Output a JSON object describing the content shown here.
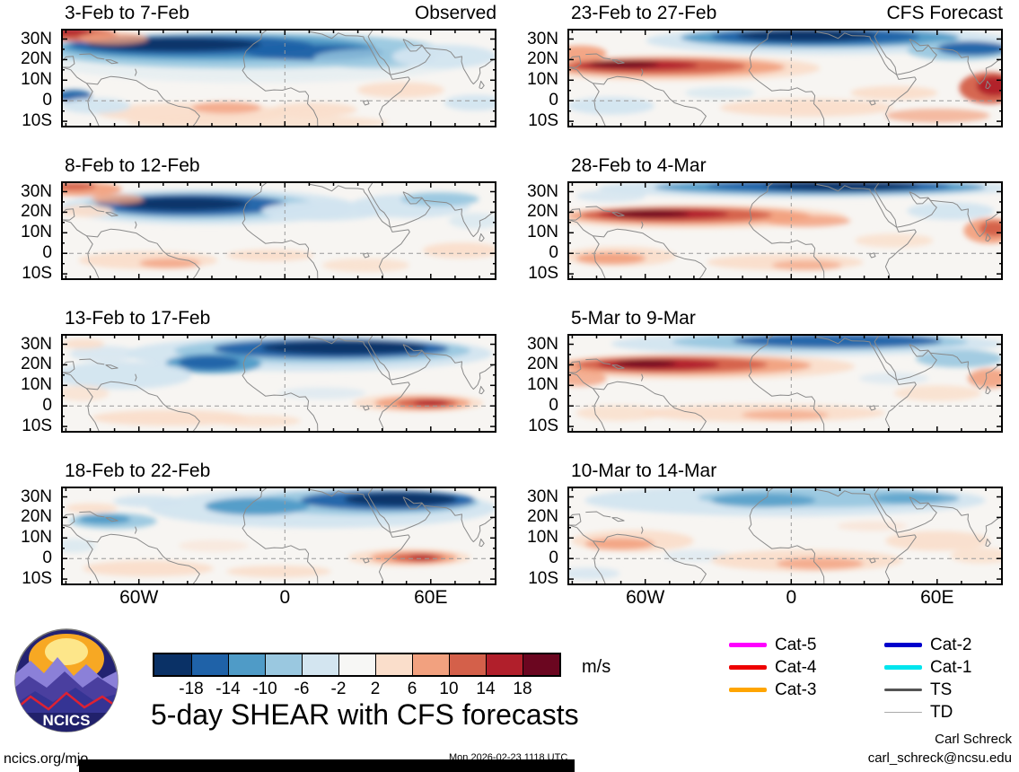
{
  "title": "5-day SHEAR with CFS forecasts",
  "logo": {
    "text": "NCICS"
  },
  "footer": {
    "left": "ncics.org/mjo",
    "timestamp": "Mon 2026-02-23 1118 UTC",
    "credit": "Carl Schreck",
    "email": "carl_schreck@ncsu.edu"
  },
  "legend": {
    "items": [
      {
        "label": "Cat-5",
        "color": "#ff00ff",
        "weight": 5
      },
      {
        "label": "Cat-4",
        "color": "#ee0000",
        "weight": 5
      },
      {
        "label": "Cat-3",
        "color": "#ffa500",
        "weight": 5
      },
      {
        "label": "Cat-2",
        "color": "#0000cc",
        "weight": 5
      },
      {
        "label": "Cat-1",
        "color": "#00e5ee",
        "weight": 5
      },
      {
        "label": "TS",
        "color": "#555555",
        "weight": 3
      },
      {
        "label": "TD",
        "color": "#aaaaaa",
        "weight": 1.5
      }
    ]
  },
  "chart_data": {
    "type": "heatmap",
    "variable": "5-day SHEAR anomaly maps with CFS forecasts",
    "map_bg": "#f7f5f2",
    "columns": [
      "Observed",
      "CFS Forecast"
    ],
    "x_axis": {
      "ticks": [
        [
          "60W",
          -60
        ],
        [
          "0",
          0
        ],
        [
          "60E",
          60
        ]
      ],
      "range_deg": [
        -92,
        87
      ]
    },
    "y_axis": {
      "ticks": [
        [
          "30N",
          30
        ],
        [
          "20N",
          20
        ],
        [
          "10N",
          10
        ],
        [
          "0",
          0
        ],
        [
          "10S",
          -10
        ]
      ],
      "range_deg": [
        35,
        -13
      ]
    },
    "colorbar": {
      "levels": [
        "-18",
        "-14",
        "-10",
        "-6",
        "-2",
        "2",
        "6",
        "10",
        "14",
        "18"
      ],
      "colors": [
        "#0a3166",
        "#1f62a8",
        "#4f9bc7",
        "#9ac8e0",
        "#d3e5f0",
        "#f7f7f5",
        "#fadecb",
        "#f2a17f",
        "#d4604a",
        "#b11f2b",
        "#6b0620"
      ],
      "units": "m/s"
    },
    "palette": {
      "b1": "#d3e5f0",
      "b2": "#9ac8e0",
      "b3": "#4f9bc7",
      "b4": "#1f62a8",
      "b5": "#0a3166",
      "r1": "#fadecb",
      "r2": "#f2a17f",
      "r3": "#d4604a",
      "r4": "#b11f2b",
      "r5": "#6b0620"
    },
    "panels": [
      {
        "title": "3-Feb to 7-Feb",
        "column": "Observed",
        "corner": "Observed",
        "blobs": [
          [
            45,
            30,
            50,
            25,
            "b1",
            0.4
          ],
          [
            42,
            22,
            46,
            18,
            "b2"
          ],
          [
            36,
            19,
            36,
            13,
            "b3"
          ],
          [
            30,
            17,
            28,
            10,
            "b4"
          ],
          [
            26,
            16,
            20,
            7,
            "b5"
          ],
          [
            58,
            24,
            16,
            8,
            "b4"
          ],
          [
            72,
            30,
            14,
            10,
            "b2",
            0.8
          ],
          [
            88,
            28,
            12,
            12,
            "b1"
          ],
          [
            4,
            6,
            9,
            7,
            "r3"
          ],
          [
            2,
            3,
            5,
            4,
            "r4"
          ],
          [
            12,
            10,
            8,
            6,
            "r2",
            0.8
          ],
          [
            30,
            85,
            22,
            10,
            "r1"
          ],
          [
            38,
            80,
            8,
            6,
            "r2",
            0.8
          ],
          [
            58,
            82,
            10,
            7,
            "r1"
          ],
          [
            3,
            68,
            4,
            6,
            "b4"
          ],
          [
            8,
            78,
            8,
            8,
            "b1"
          ],
          [
            78,
            62,
            10,
            8,
            "r1"
          ],
          [
            95,
            75,
            7,
            8,
            "b1"
          ],
          [
            45,
            95,
            30,
            8,
            "r1",
            0.8
          ]
        ]
      },
      {
        "title": "23-Feb to 27-Feb",
        "column": "CFS Forecast",
        "corner": "CFS Forecast",
        "blobs": [
          [
            60,
            12,
            42,
            14,
            "b1"
          ],
          [
            58,
            9,
            32,
            10,
            "b3"
          ],
          [
            57,
            8,
            24,
            8,
            "b4"
          ],
          [
            55,
            7,
            16,
            6,
            "b5"
          ],
          [
            90,
            22,
            12,
            10,
            "b2"
          ],
          [
            93,
            20,
            8,
            7,
            "b4"
          ],
          [
            10,
            78,
            10,
            9,
            "b1"
          ],
          [
            35,
            65,
            8,
            6,
            "b1",
            0.7
          ],
          [
            25,
            40,
            33,
            13,
            "r1"
          ],
          [
            23,
            39,
            27,
            10,
            "r2"
          ],
          [
            20,
            38,
            21,
            8,
            "r3"
          ],
          [
            16,
            37,
            14,
            5,
            "r4"
          ],
          [
            13,
            36,
            8,
            3.5,
            "r5"
          ],
          [
            3,
            25,
            6,
            8,
            "r2"
          ],
          [
            55,
            80,
            20,
            9,
            "r1"
          ],
          [
            75,
            65,
            10,
            7,
            "r1"
          ],
          [
            97,
            60,
            7,
            16,
            "r3"
          ],
          [
            98,
            58,
            4,
            10,
            "r4"
          ],
          [
            85,
            88,
            12,
            7,
            "r2",
            0.7
          ]
        ]
      },
      {
        "title": "8-Feb to 12-Feb",
        "column": "Observed",
        "blobs": [
          [
            34,
            26,
            34,
            18,
            "b1"
          ],
          [
            32,
            25,
            27,
            14,
            "b2"
          ],
          [
            30,
            24,
            22,
            11,
            "b4"
          ],
          [
            28,
            23,
            15,
            7,
            "b5"
          ],
          [
            60,
            30,
            14,
            10,
            "b1"
          ],
          [
            80,
            25,
            14,
            12,
            "b1"
          ],
          [
            87,
            18,
            9,
            7,
            "b2"
          ],
          [
            95,
            40,
            6,
            8,
            "b1",
            0.7
          ],
          [
            5,
            8,
            9,
            7,
            "r2"
          ],
          [
            3,
            5,
            5,
            4,
            "r3"
          ],
          [
            13,
            18,
            6,
            5,
            "r2",
            0.8
          ],
          [
            6,
            30,
            6,
            6,
            "r1"
          ],
          [
            20,
            80,
            16,
            9,
            "r1"
          ],
          [
            25,
            83,
            7,
            5,
            "r2",
            0.8
          ],
          [
            48,
            75,
            10,
            6,
            "r1"
          ],
          [
            70,
            85,
            10,
            7,
            "r1",
            0.8
          ],
          [
            92,
            70,
            9,
            8,
            "r1"
          ]
        ]
      },
      {
        "title": "28-Feb to 4-Mar",
        "column": "CFS Forecast",
        "blobs": [
          [
            55,
            7,
            48,
            10,
            "b1"
          ],
          [
            58,
            6,
            38,
            7.5,
            "b3"
          ],
          [
            60,
            5,
            28,
            6,
            "b4"
          ],
          [
            63,
            5,
            18,
            4.5,
            "b5"
          ],
          [
            10,
            15,
            8,
            6,
            "b1",
            0.8
          ],
          [
            88,
            30,
            10,
            9,
            "b1"
          ],
          [
            30,
            36,
            34,
            12,
            "r1"
          ],
          [
            28,
            35,
            28,
            9.5,
            "r2"
          ],
          [
            25,
            34,
            22,
            7.5,
            "r3"
          ],
          [
            22,
            33,
            15,
            5.5,
            "r4"
          ],
          [
            19,
            33,
            9,
            3.5,
            "r5"
          ],
          [
            55,
            40,
            10,
            6,
            "r2",
            0.8
          ],
          [
            12,
            76,
            13,
            10,
            "r1"
          ],
          [
            10,
            78,
            8,
            6,
            "r2"
          ],
          [
            50,
            82,
            18,
            8,
            "r1"
          ],
          [
            55,
            85,
            8,
            5,
            "r2",
            0.7
          ],
          [
            97,
            50,
            6,
            13,
            "r2"
          ],
          [
            98,
            48,
            3.5,
            8,
            "r3"
          ],
          [
            75,
            60,
            9,
            7,
            "r1",
            0.8
          ]
        ]
      },
      {
        "title": "13-Feb to 17-Feb",
        "column": "Observed",
        "blobs": [
          [
            57,
            20,
            42,
            18,
            "b1"
          ],
          [
            60,
            17,
            34,
            13,
            "b2"
          ],
          [
            62,
            15,
            27,
            10,
            "b4"
          ],
          [
            65,
            14,
            19,
            7,
            "b5"
          ],
          [
            35,
            30,
            11,
            10,
            "b3"
          ],
          [
            34,
            29,
            7,
            7,
            "b4"
          ],
          [
            14,
            42,
            16,
            14,
            "b1"
          ],
          [
            10,
            20,
            8,
            8,
            "b1",
            0.8
          ],
          [
            60,
            60,
            10,
            6,
            "b1",
            0.6
          ],
          [
            5,
            10,
            5,
            5,
            "r1",
            0.9
          ],
          [
            82,
            70,
            15,
            9,
            "r1"
          ],
          [
            83,
            70,
            11,
            7,
            "r2"
          ],
          [
            84,
            70,
            7,
            5,
            "r3"
          ],
          [
            85,
            70,
            4,
            3,
            "r4"
          ],
          [
            25,
            85,
            18,
            8,
            "r1"
          ],
          [
            45,
            88,
            10,
            6,
            "r1",
            0.8
          ],
          [
            5,
            60,
            6,
            8,
            "r1",
            0.7
          ]
        ]
      },
      {
        "title": "5-Mar to 9-Mar",
        "column": "CFS Forecast",
        "blobs": [
          [
            55,
            10,
            45,
            12,
            "b1"
          ],
          [
            58,
            8,
            34,
            9,
            "b2"
          ],
          [
            62,
            7,
            24,
            7,
            "b4"
          ],
          [
            90,
            25,
            10,
            9,
            "b2",
            0.9
          ],
          [
            75,
            45,
            8,
            6,
            "b1",
            0.6
          ],
          [
            30,
            33,
            36,
            13,
            "r1"
          ],
          [
            27,
            32,
            29,
            10,
            "r2"
          ],
          [
            24,
            31,
            22,
            8,
            "r3"
          ],
          [
            21,
            31,
            14,
            6,
            "r4"
          ],
          [
            18,
            30,
            7,
            3.5,
            "r5"
          ],
          [
            3,
            45,
            6,
            8,
            "r2",
            0.8
          ],
          [
            45,
            80,
            28,
            9,
            "r1"
          ],
          [
            50,
            82,
            10,
            5,
            "r2",
            0.7
          ],
          [
            12,
            80,
            10,
            8,
            "r1",
            0.8
          ],
          [
            85,
            60,
            10,
            8,
            "r1",
            0.8
          ],
          [
            97,
            45,
            5,
            10,
            "r2",
            0.9
          ]
        ]
      },
      {
        "title": "18-Feb to 22-Feb",
        "column": "Observed",
        "blobs": [
          [
            60,
            22,
            40,
            20,
            "b1"
          ],
          [
            70,
            16,
            26,
            13,
            "b2"
          ],
          [
            75,
            14,
            20,
            10,
            "b4"
          ],
          [
            78,
            13,
            13,
            7,
            "b5"
          ],
          [
            45,
            20,
            12,
            9,
            "b3"
          ],
          [
            20,
            15,
            8,
            6,
            "b1"
          ],
          [
            12,
            35,
            10,
            8,
            "b2"
          ],
          [
            10,
            33,
            6,
            5,
            "b3"
          ],
          [
            3,
            60,
            5,
            7,
            "b1",
            0.7
          ],
          [
            7,
            22,
            6,
            5,
            "r1",
            0.9
          ],
          [
            80,
            72,
            14,
            9,
            "r1"
          ],
          [
            81,
            72,
            10,
            6.5,
            "r2"
          ],
          [
            82,
            72,
            6,
            4.5,
            "r3"
          ],
          [
            83,
            72,
            3,
            2.5,
            "r4"
          ],
          [
            20,
            83,
            15,
            8,
            "r1"
          ],
          [
            50,
            86,
            12,
            6,
            "r1",
            0.9
          ],
          [
            35,
            60,
            8,
            6,
            "r1",
            0.5
          ]
        ]
      },
      {
        "title": "10-Mar to 14-Mar",
        "column": "CFS Forecast",
        "blobs": [
          [
            50,
            14,
            46,
            16,
            "b1"
          ],
          [
            58,
            11,
            28,
            10,
            "b2"
          ],
          [
            45,
            14,
            12,
            7,
            "b3",
            0.8
          ],
          [
            80,
            12,
            10,
            6,
            "b3",
            0.7
          ],
          [
            30,
            70,
            8,
            6,
            "b1",
            0.6
          ],
          [
            5,
            88,
            7,
            6,
            "b1",
            0.8
          ],
          [
            15,
            55,
            14,
            11,
            "r1"
          ],
          [
            12,
            58,
            8,
            6,
            "r2",
            0.9
          ],
          [
            55,
            75,
            22,
            11,
            "r1"
          ],
          [
            58,
            78,
            10,
            6,
            "r2",
            0.8
          ],
          [
            85,
            55,
            12,
            10,
            "r1",
            0.9
          ],
          [
            95,
            70,
            7,
            8,
            "r1",
            0.8
          ],
          [
            70,
            40,
            8,
            5,
            "r1",
            0.6
          ]
        ]
      }
    ]
  }
}
